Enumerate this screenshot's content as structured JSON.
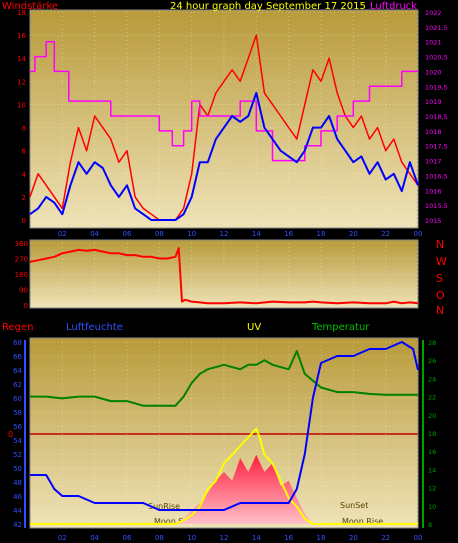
{
  "colors": {
    "wind": "#ff2000",
    "gust": "#ff0000",
    "pressure": "#ff00ff",
    "direction": "#ff0000",
    "humidity": "#0000ff",
    "temperature": "#008000",
    "uv": "#ffff00",
    "solar": "#ff2040",
    "rain": "#c00000",
    "title": "#ffff00",
    "axis_left": "#ff0000",
    "axis_right": "#ff00ff",
    "axis_blue": "#3050ff",
    "axis_green": "#00a000"
  },
  "header": {
    "left": "Windstärke",
    "center": "24 hour graph day   September 17 2015",
    "right": "Luftdruck"
  },
  "compass": [
    "N",
    "W",
    "S",
    "O",
    "N"
  ],
  "lower_header": {
    "rain": "Regen",
    "humidity": "Luftfeuchte",
    "uv": "UV",
    "temperature": "Temperatur"
  },
  "annotations": {
    "sunrise": "SunRise",
    "sunset": "SunSet",
    "moonset": "Moon Set",
    "moonrise": "Moon Rise",
    "rain_zero": "0"
  },
  "chart_data": [
    {
      "type": "line",
      "name": "wind",
      "ylim_left": [
        0,
        18
      ],
      "yticks_left": [
        "0",
        "2",
        "4",
        "6",
        "8",
        "10",
        "12",
        "14",
        "16",
        "18"
      ],
      "ylim_right": [
        1015,
        1022
      ],
      "yticks_right": [
        "1015",
        "1015,5",
        "1016",
        "1016,5",
        "1017",
        "1017,5",
        "1018",
        "1018,5",
        "1019",
        "1019,5",
        "1020",
        "1020,5",
        "1021",
        "1021,5",
        "1022"
      ],
      "xticks": [
        "02",
        "04",
        "06",
        "08",
        "10",
        "12",
        "14",
        "16",
        "18",
        "20",
        "22",
        "00"
      ],
      "series": [
        {
          "key": "gust",
          "x": [
            0,
            0.5,
            1,
            1.5,
            2,
            2.5,
            3,
            3.5,
            4,
            4.5,
            5,
            5.5,
            6,
            6.5,
            7,
            7.5,
            8,
            8.5,
            9,
            9.5,
            10,
            10.5,
            11,
            11.5,
            12,
            12.5,
            13,
            13.5,
            14,
            14.5,
            15,
            15.5,
            16,
            16.5,
            17,
            17.5,
            18,
            18.5,
            19,
            19.5,
            20,
            20.5,
            21,
            21.5,
            22,
            22.5,
            23,
            23.5,
            24
          ],
          "y": [
            2,
            4,
            3,
            2,
            1,
            5,
            8,
            6,
            9,
            8,
            7,
            5,
            6,
            2,
            1,
            0.5,
            0,
            0,
            0,
            1,
            4,
            10,
            9,
            11,
            12,
            13,
            12,
            14,
            16,
            11,
            10,
            9,
            8,
            7,
            10,
            13,
            12,
            14,
            11,
            9,
            8,
            9,
            7,
            8,
            6,
            7,
            5,
            4,
            3
          ]
        },
        {
          "key": "wind_avg",
          "x": [
            0,
            0.5,
            1,
            1.5,
            2,
            2.5,
            3,
            3.5,
            4,
            4.5,
            5,
            5.5,
            6,
            6.5,
            7,
            7.5,
            8,
            8.5,
            9,
            9.5,
            10,
            10.5,
            11,
            11.5,
            12,
            12.5,
            13,
            13.5,
            14,
            14.5,
            15,
            15.5,
            16,
            16.5,
            17,
            17.5,
            18,
            18.5,
            19,
            19.5,
            20,
            20.5,
            21,
            21.5,
            22,
            22.5,
            23,
            23.5,
            24
          ],
          "y": [
            0.5,
            1,
            2,
            1.5,
            0.5,
            3,
            5,
            4,
            5,
            4.5,
            3,
            2,
            3,
            1,
            0.5,
            0,
            0,
            0,
            0,
            0.5,
            2,
            5,
            5,
            7,
            8,
            9,
            8.5,
            9,
            11,
            8,
            7,
            6,
            5.5,
            5,
            6,
            8,
            8,
            9,
            7,
            6,
            5,
            5.5,
            4,
            5,
            3.5,
            4,
            2.5,
            5,
            3
          ]
        },
        {
          "key": "pressure",
          "x": [
            0,
            0.3,
            0.3,
            1,
            1,
            1.5,
            1.5,
            2.4,
            2.4,
            4,
            4,
            5,
            5,
            6,
            6,
            7,
            7,
            8,
            8,
            8.8,
            8.8,
            9.5,
            9.5,
            10,
            10,
            10.5,
            10.5,
            12,
            12,
            13,
            13,
            14,
            14,
            15,
            15,
            16,
            16,
            17,
            17,
            18,
            18,
            19,
            19,
            20,
            20,
            21,
            21,
            22,
            22,
            23,
            23,
            24
          ],
          "y": [
            1020,
            1020,
            1020.5,
            1020.5,
            1021,
            1021,
            1020,
            1020,
            1019,
            1019,
            1019,
            1019,
            1018.5,
            1018.5,
            1018.5,
            1018.5,
            1018.5,
            1018.5,
            1018,
            1018,
            1017.5,
            1017.5,
            1018,
            1018,
            1019,
            1019,
            1018.5,
            1018.5,
            1018.5,
            1018.5,
            1019,
            1019,
            1018,
            1018,
            1017,
            1017,
            1017,
            1017,
            1017.5,
            1017.5,
            1018,
            1018,
            1018.5,
            1018.5,
            1019,
            1019,
            1019.5,
            1019.5,
            1019.5,
            1019.5,
            1020,
            1020
          ]
        }
      ]
    },
    {
      "type": "line",
      "name": "wind_direction",
      "ylim": [
        0,
        360
      ],
      "yticks": [
        "0",
        "90",
        "180",
        "270",
        "360"
      ],
      "series": [
        {
          "key": "direction",
          "x": [
            0,
            0.5,
            1,
            1.5,
            2,
            2.5,
            3,
            3.5,
            4,
            4.5,
            5,
            5.5,
            6,
            6.5,
            7,
            7.5,
            8,
            8.5,
            9,
            9.2,
            9.4,
            9.6,
            10,
            10.5,
            11,
            12,
            13,
            14,
            15,
            16,
            17,
            17.5,
            18,
            19,
            20,
            21,
            22,
            22.5,
            23,
            23.5,
            24
          ],
          "y": [
            250,
            260,
            270,
            280,
            300,
            310,
            320,
            315,
            320,
            310,
            300,
            300,
            290,
            290,
            280,
            280,
            270,
            270,
            280,
            330,
            20,
            30,
            20,
            15,
            10,
            10,
            15,
            10,
            20,
            15,
            15,
            20,
            15,
            10,
            15,
            10,
            10,
            20,
            10,
            15,
            10
          ]
        }
      ]
    },
    {
      "type": "line",
      "name": "climate",
      "ylim_humidity": [
        42,
        68
      ],
      "yticks_humidity": [
        "42",
        "44",
        "46",
        "48",
        "50",
        "52",
        "54",
        "56",
        "58",
        "60",
        "62",
        "64",
        "66",
        "68"
      ],
      "ylim_temperature": [
        8,
        28
      ],
      "yticks_temperature": [
        "8",
        "10",
        "12",
        "14",
        "16",
        "18",
        "20",
        "22",
        "24",
        "26",
        "28"
      ],
      "series": [
        {
          "key": "humidity",
          "x": [
            0,
            1,
            1.5,
            2,
            3,
            4,
            5,
            6,
            7,
            8,
            9,
            10,
            11,
            12,
            13,
            14,
            15,
            16,
            16.5,
            17,
            17.5,
            18,
            19,
            20,
            21,
            22,
            23,
            23.7,
            24
          ],
          "y": [
            49,
            49,
            47,
            46,
            46,
            45,
            45,
            45,
            45,
            44,
            44,
            44,
            44,
            44,
            45,
            45,
            45,
            45,
            47,
            52,
            60,
            65,
            66,
            66,
            67,
            67,
            68,
            67,
            64
          ]
        },
        {
          "key": "temperature",
          "x": [
            0,
            1,
            2,
            3,
            4,
            5,
            6,
            7,
            8,
            9,
            9.5,
            10,
            10.5,
            11,
            12,
            13,
            13.5,
            14,
            14.5,
            15,
            16,
            16.5,
            17,
            18,
            19,
            20,
            21,
            22,
            23,
            24
          ],
          "y": [
            22,
            22,
            21.8,
            22,
            22,
            21.5,
            21.5,
            21,
            21,
            21,
            22,
            23.5,
            24.5,
            25,
            25.5,
            25,
            25.5,
            25.5,
            26,
            25.5,
            25,
            27,
            24.5,
            23,
            22.5,
            22.5,
            22.3,
            22.2,
            22.2,
            22.2
          ]
        },
        {
          "key": "uv",
          "x": [
            0,
            8,
            9,
            9.5,
            10,
            10.5,
            11,
            11.5,
            12,
            12.5,
            13,
            13.5,
            14,
            14.2,
            14.5,
            15,
            15.5,
            16,
            16.5,
            17,
            17.5,
            18,
            24
          ],
          "y": [
            0,
            0,
            0,
            0.2,
            0.5,
            1,
            2,
            2.5,
            3.5,
            4,
            4.5,
            5,
            5.5,
            5,
            4,
            3.5,
            2.5,
            1.5,
            1,
            0.3,
            0,
            0,
            0
          ]
        },
        {
          "key": "solar",
          "x": [
            0,
            9,
            9.5,
            10,
            10.5,
            11,
            11.5,
            12,
            12.5,
            13,
            13.5,
            14,
            14.5,
            15,
            15.5,
            16,
            16.5,
            17,
            17.5,
            24
          ],
          "y": [
            0,
            0,
            0.3,
            0.8,
            1.2,
            1.8,
            2.5,
            3,
            2.5,
            3.8,
            3,
            4,
            3,
            3.5,
            2.2,
            2.5,
            1.5,
            0.6,
            0,
            0
          ]
        }
      ]
    }
  ]
}
